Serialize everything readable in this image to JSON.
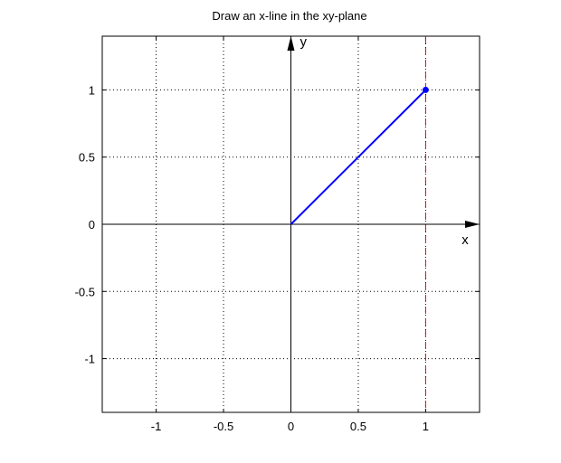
{
  "chart_data": {
    "type": "line",
    "title": "Draw an x-line in the xy-plane",
    "xlim": [
      -1.4,
      1.4
    ],
    "ylim": [
      -1.4,
      1.4
    ],
    "x_ticks": [
      -1,
      -0.5,
      0,
      0.5,
      1
    ],
    "x_tick_labels": [
      "-1",
      "-0.5",
      "0",
      "0.5",
      "1"
    ],
    "y_ticks": [
      -1,
      -0.5,
      0,
      0.5,
      1
    ],
    "y_tick_labels": [
      "-1",
      "-0.5",
      "0",
      "0.5",
      "1"
    ],
    "grid": true,
    "grid_style": "dotted",
    "axis_arrow_labels": {
      "x": "x",
      "y": "y"
    },
    "series": [
      {
        "style": "solid",
        "color": "#0000ff",
        "points": [
          [
            0,
            0
          ],
          [
            1,
            1
          ]
        ],
        "marker_at_end": true
      }
    ],
    "reference_lines": [
      {
        "orientation": "vertical",
        "x": 1,
        "style": "dashed",
        "color": "#ff0000"
      }
    ],
    "colors": {
      "vector": "#0000ff",
      "reference": "#ff0000",
      "axes": "#000000",
      "grid": "#000000"
    }
  }
}
